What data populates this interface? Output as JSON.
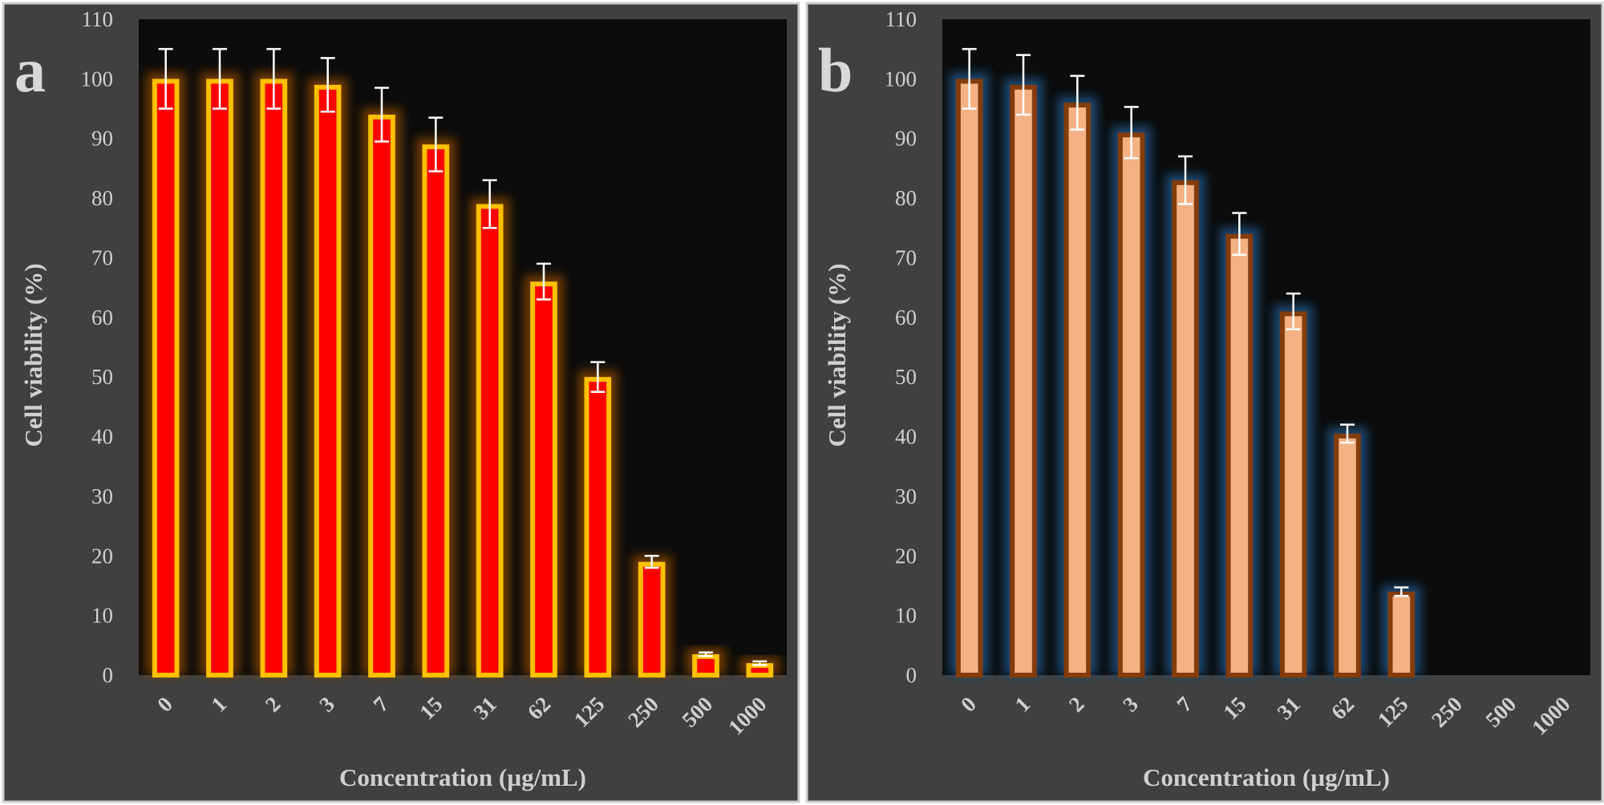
{
  "chart_data": [
    {
      "type": "bar",
      "panel_label": "a",
      "categories": [
        "0",
        "1",
        "2",
        "3",
        "7",
        "15",
        "31",
        "62",
        "125",
        "250",
        "500",
        "1000"
      ],
      "values": [
        100,
        100,
        100,
        99,
        94,
        89,
        79,
        66,
        50,
        19,
        3.5,
        2
      ],
      "errors": [
        5,
        5,
        5,
        4.5,
        4.5,
        4.5,
        4,
        3,
        2.5,
        1,
        0.3,
        0.3
      ],
      "xlabel": "Concentration (µg/mL)",
      "ylabel": "Cell viability (%)",
      "ylim": [
        0,
        110
      ],
      "yticks": [
        "0",
        "10",
        "20",
        "30",
        "40",
        "50",
        "60",
        "70",
        "80",
        "90",
        "100",
        "110"
      ],
      "grid": false,
      "colors": {
        "fill": "#ff0000",
        "border": "#ffc000",
        "glow": "#7a4000"
      }
    },
    {
      "type": "bar",
      "panel_label": "b",
      "categories": [
        "0",
        "1",
        "2",
        "3",
        "7",
        "15",
        "31",
        "62",
        "125",
        "250",
        "500",
        "1000"
      ],
      "values": [
        100,
        99,
        96,
        91,
        83,
        74,
        61,
        40.5,
        14,
        0,
        0,
        0
      ],
      "errors": [
        5,
        5,
        4.5,
        4.3,
        4,
        3.5,
        3,
        1.5,
        0.7,
        0,
        0,
        0
      ],
      "xlabel": "Concentration (µg/mL)",
      "ylabel": "Cell viability (%)",
      "ylim": [
        0,
        110
      ],
      "yticks": [
        "0",
        "10",
        "20",
        "30",
        "40",
        "50",
        "60",
        "70",
        "80",
        "90",
        "100",
        "110"
      ],
      "grid": false,
      "colors": {
        "fill": "#f4b183",
        "border": "#843c0c",
        "glow": "#1f4e79"
      }
    }
  ]
}
